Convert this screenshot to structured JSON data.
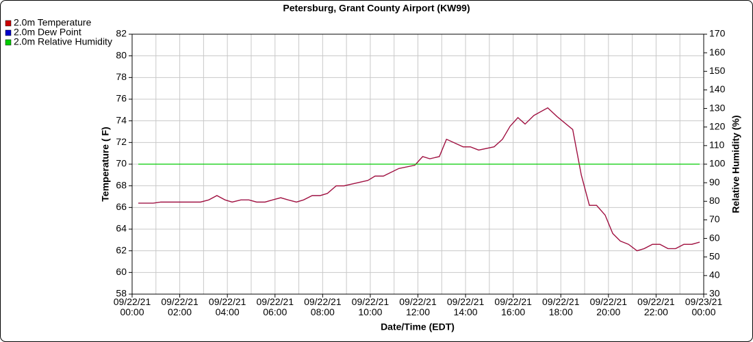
{
  "chart_data": {
    "type": "line",
    "title": "Petersburg, Grant County Airport (KW99)",
    "xlabel": "Date/Time (EDT)",
    "ylabel": "Temperature ( F)",
    "y2label": "Relative Humidity (%)",
    "x": [
      0.26,
      0.89,
      1.2,
      2.87,
      3.22,
      3.56,
      3.9,
      4.2,
      4.57,
      4.9,
      5.23,
      5.58,
      5.9,
      6.24,
      6.55,
      6.9,
      7.2,
      7.56,
      7.9,
      8.2,
      8.57,
      8.9,
      9.9,
      10.2,
      10.55,
      11.2,
      11.87,
      12.2,
      12.5,
      12.9,
      13.2,
      13.9,
      14.2,
      14.55,
      15.2,
      15.55,
      15.87,
      16.2,
      16.5,
      16.87,
      17.2,
      17.45,
      17.84,
      18.5,
      18.86,
      19.2,
      19.5,
      19.86,
      20.18,
      20.5,
      20.84,
      21.2,
      21.5,
      21.85,
      22.16,
      22.5,
      22.82,
      23.17,
      23.5,
      23.83
    ],
    "series": [
      {
        "name": "2.0m Dew Point",
        "color": "#0000cc",
        "values": [
          66.4,
          66.4,
          66.5,
          66.5,
          66.7,
          67.1,
          66.7,
          66.5,
          66.7,
          66.7,
          66.5,
          66.5,
          66.7,
          66.9,
          66.7,
          66.5,
          66.7,
          67.1,
          67.1,
          67.3,
          68.0,
          68.0,
          68.5,
          68.9,
          68.9,
          69.6,
          69.9,
          70.7,
          70.5,
          70.7,
          72.3,
          71.6,
          71.6,
          71.3,
          71.6,
          72.3,
          73.5,
          74.3,
          73.7,
          74.5,
          74.9,
          75.2,
          74.4,
          73.2,
          69.0,
          66.2,
          66.2,
          65.3,
          63.6,
          62.9,
          62.6,
          62.0,
          62.2,
          62.6,
          62.6,
          62.2,
          62.2,
          62.6,
          62.6,
          62.8
        ]
      },
      {
        "name": "2.0m Temperature",
        "color": "#cc0000",
        "values": [
          66.4,
          66.4,
          66.5,
          66.5,
          66.7,
          67.1,
          66.7,
          66.5,
          66.7,
          66.7,
          66.5,
          66.5,
          66.7,
          66.9,
          66.7,
          66.5,
          66.7,
          67.1,
          67.1,
          67.3,
          68.0,
          68.0,
          68.5,
          68.9,
          68.9,
          69.6,
          69.9,
          70.7,
          70.5,
          70.7,
          72.3,
          71.6,
          71.6,
          71.3,
          71.6,
          72.3,
          73.5,
          74.3,
          73.7,
          74.5,
          74.9,
          75.2,
          74.4,
          73.2,
          69.0,
          66.2,
          66.2,
          65.3,
          63.6,
          62.9,
          62.6,
          62.0,
          62.2,
          62.6,
          62.6,
          62.2,
          62.2,
          62.6,
          62.6,
          62.8
        ]
      },
      {
        "name": "2.0m Relative Humidity",
        "color": "#00cc00",
        "axis": "y2",
        "values": [
          100,
          100,
          100,
          100,
          100,
          100,
          100,
          100,
          100,
          100,
          100,
          100,
          100,
          100,
          100,
          100,
          100,
          100,
          100,
          100,
          100,
          100,
          100,
          100,
          100,
          100,
          100,
          100,
          100,
          100,
          100,
          100,
          100,
          100,
          100,
          100,
          100,
          100,
          100,
          100,
          100,
          100,
          100,
          100,
          100,
          100,
          100,
          100,
          100,
          100,
          100,
          100,
          100,
          100,
          100,
          100,
          100,
          100,
          100,
          100
        ]
      }
    ],
    "legend_order": [
      "2.0m Temperature",
      "2.0m Dew Point",
      "2.0m Relative Humidity"
    ],
    "xlim": [
      0,
      24
    ],
    "xticks": [
      {
        "value": 0,
        "label": "09/22/21\n00:00"
      },
      {
        "value": 2,
        "label": "09/22/21\n02:00"
      },
      {
        "value": 4,
        "label": "09/22/21\n04:00"
      },
      {
        "value": 6,
        "label": "09/22/21\n06:00"
      },
      {
        "value": 8,
        "label": "09/22/21\n08:00"
      },
      {
        "value": 10,
        "label": "09/22/21\n10:00"
      },
      {
        "value": 12,
        "label": "09/22/21\n12:00"
      },
      {
        "value": 14,
        "label": "09/22/21\n14:00"
      },
      {
        "value": 16,
        "label": "09/22/21\n16:00"
      },
      {
        "value": 18,
        "label": "09/22/21\n18:00"
      },
      {
        "value": 20,
        "label": "09/22/21\n20:00"
      },
      {
        "value": 22,
        "label": "09/22/21\n22:00"
      },
      {
        "value": 24,
        "label": "09/23/21\n00:00"
      }
    ],
    "ylim": [
      58,
      82
    ],
    "yticks": [
      58,
      60,
      62,
      64,
      66,
      68,
      70,
      72,
      74,
      76,
      78,
      80,
      82
    ],
    "y2lim": [
      30,
      170
    ],
    "y2ticks": [
      30,
      40,
      50,
      60,
      70,
      80,
      90,
      100,
      110,
      120,
      130,
      140,
      150,
      160,
      170
    ],
    "grid": true
  }
}
